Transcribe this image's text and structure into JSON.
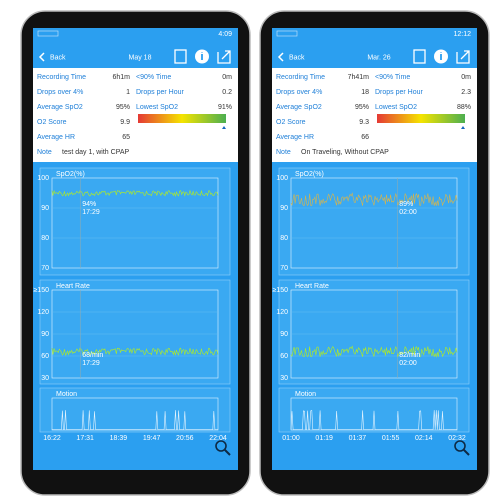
{
  "phones": [
    {
      "status_time": "4:09",
      "back": "Back",
      "date": "May 18",
      "stats": [
        [
          "Recording Time",
          "6h1m",
          "<90% Time",
          "0m"
        ],
        [
          "Drops over 4%",
          "1",
          "Drops per Hour",
          "0.2"
        ],
        [
          "Average SpO2",
          "95%",
          "Lowest SpO2",
          "91%"
        ],
        [
          "O2 Score",
          "9.9"
        ],
        [
          "Average HR",
          "65"
        ]
      ],
      "note_label": "Note",
      "note": "test day 1, with CPAP",
      "spo2": {
        "title": "SpO2(%)",
        "yticks": [
          "100",
          "90",
          "80",
          "70"
        ],
        "annotation": [
          "94%",
          "17:29"
        ]
      },
      "heart_rate": {
        "title": "Heart Rate",
        "yticks": [
          "≥150",
          "120",
          "90",
          "60",
          "30"
        ],
        "annotation": [
          "68/min",
          "17:29"
        ]
      },
      "motion": {
        "title": "Motion"
      },
      "times": [
        "16:22",
        "17:31",
        "18:39",
        "19:47",
        "20:56",
        "22:04"
      ]
    },
    {
      "status_time": "12:12",
      "back": "Back",
      "date": "Mar. 26",
      "stats": [
        [
          "Recording Time",
          "7h41m",
          "<90% Time",
          "0m"
        ],
        [
          "Drops over 4%",
          "18",
          "Drops per Hour",
          "2.3"
        ],
        [
          "Average SpO2",
          "95%",
          "Lowest SpO2",
          "88%"
        ],
        [
          "O2 Score",
          "9.3"
        ],
        [
          "Average HR",
          "66"
        ]
      ],
      "note_label": "Note",
      "note": "On Traveling, Without CPAP",
      "spo2": {
        "title": "SpO2(%)",
        "yticks": [
          "100",
          "90",
          "80",
          "70"
        ],
        "annotation": [
          "89%",
          "02:00"
        ]
      },
      "heart_rate": {
        "title": "Heart Rate",
        "yticks": [
          "≥150",
          "120",
          "90",
          "60",
          "30"
        ],
        "annotation": [
          "82/min",
          "02:00"
        ]
      },
      "motion": {
        "title": "Motion"
      },
      "times": [
        "01:00",
        "01:19",
        "01:37",
        "01:55",
        "02:14",
        "02:32"
      ]
    }
  ]
}
